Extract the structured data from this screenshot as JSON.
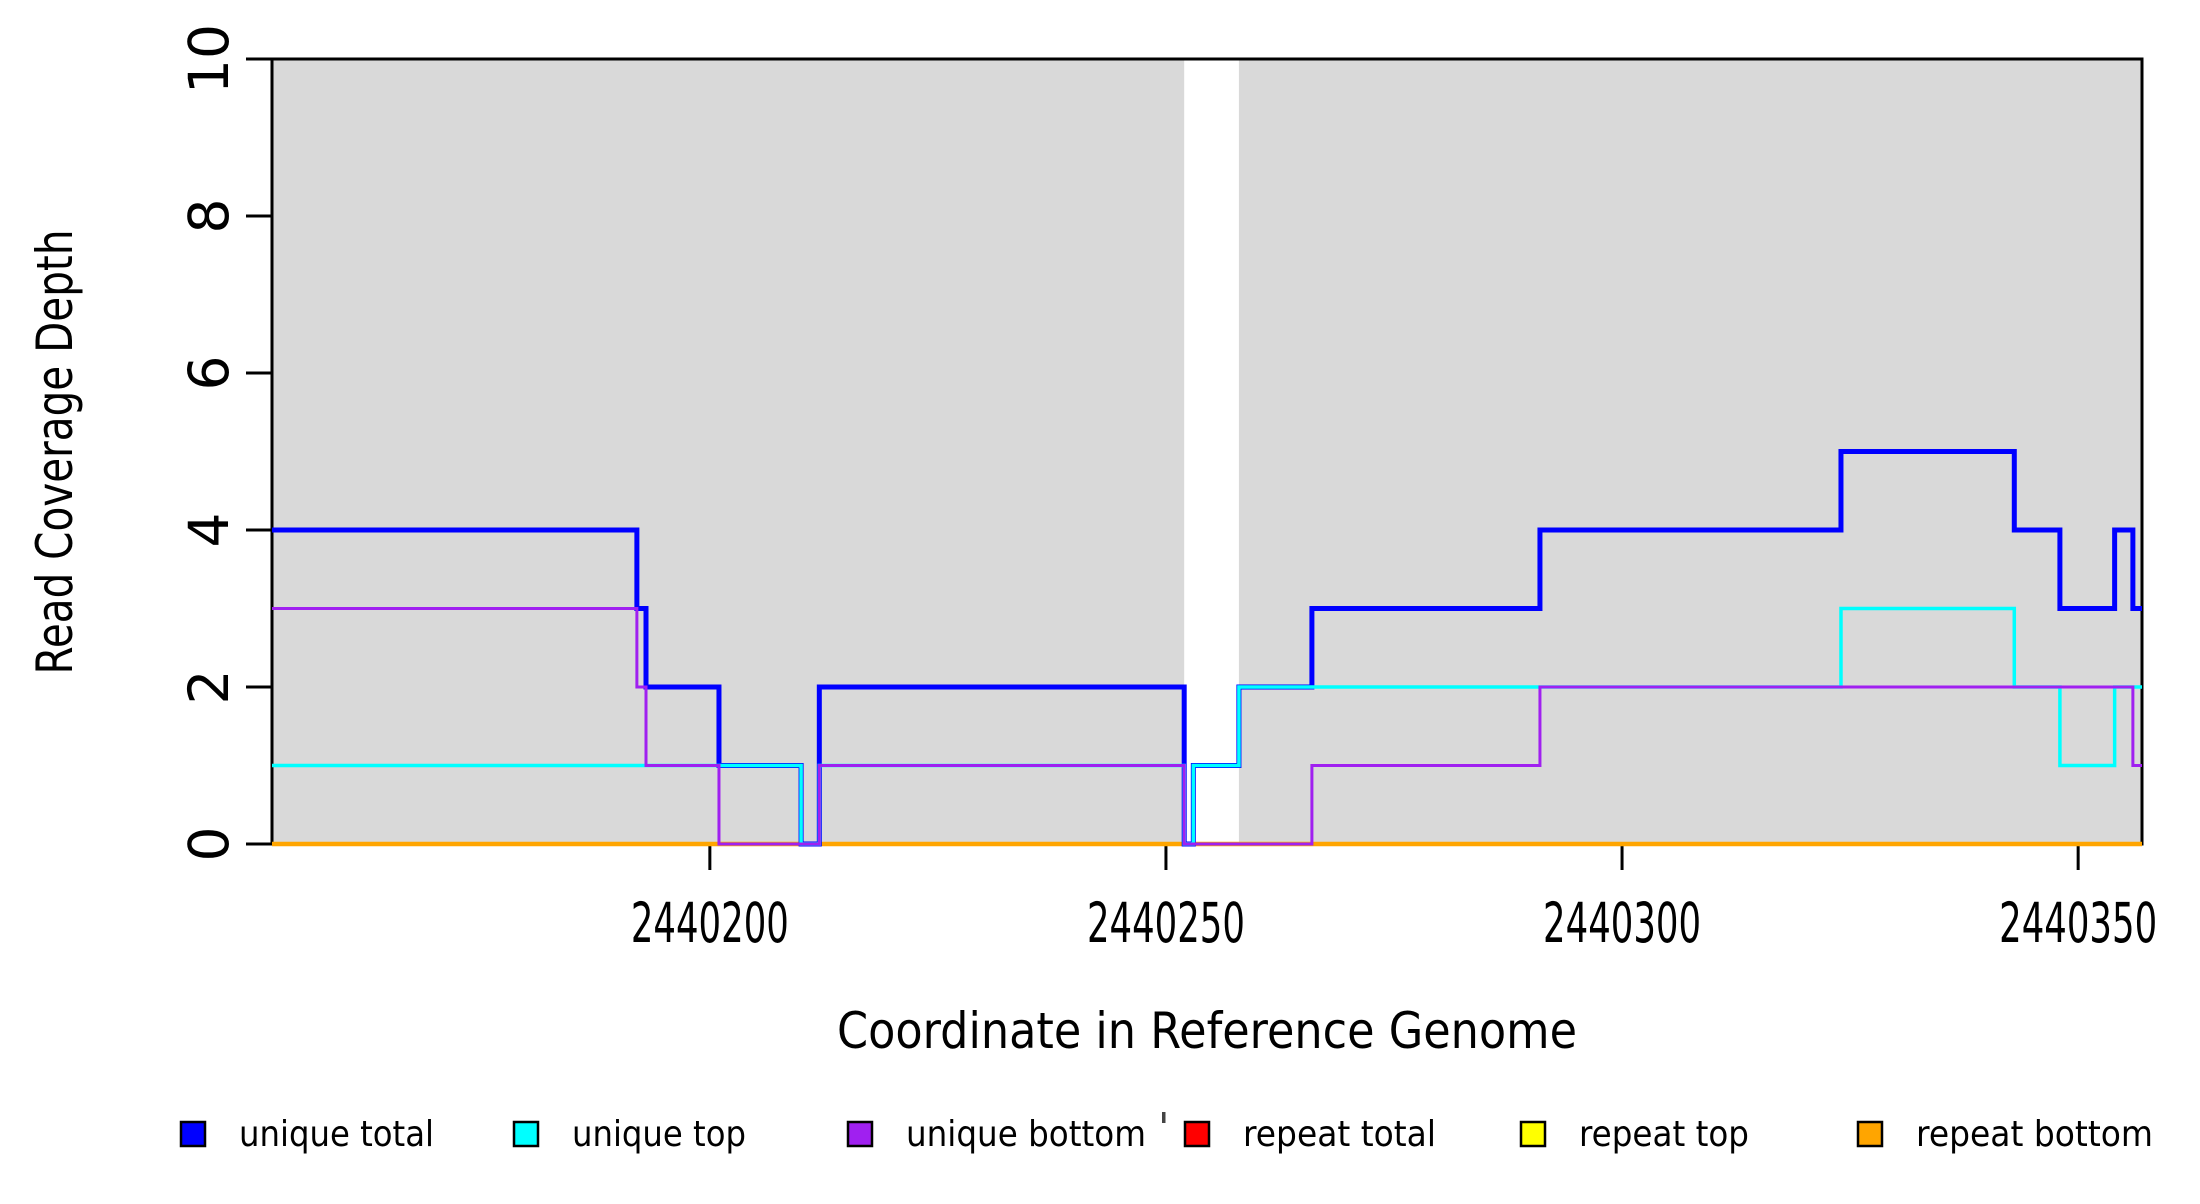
{
  "chart_data": {
    "type": "line",
    "subtype": "step",
    "title": "",
    "xlabel": "Coordinate in Reference Genome",
    "ylabel": "Read Coverage Depth",
    "xlim": [
      2440152,
      2440357
    ],
    "ylim": [
      0,
      10
    ],
    "x_ticks": [
      {
        "value": 2440200,
        "label": "2440200"
      },
      {
        "value": 2440250,
        "label": "2440250"
      },
      {
        "value": 2440300,
        "label": "2440300"
      },
      {
        "value": 2440350,
        "label": "2440350"
      }
    ],
    "y_ticks": [
      {
        "value": 0,
        "label": "0"
      },
      {
        "value": 2,
        "label": "2"
      },
      {
        "value": 4,
        "label": "4"
      },
      {
        "value": 6,
        "label": "6"
      },
      {
        "value": 8,
        "label": "8"
      },
      {
        "value": 10,
        "label": "10"
      }
    ],
    "grid": false,
    "plot_background": "#ffffff",
    "shaded_regions": [
      {
        "x0": 2440152,
        "x1": 2440252,
        "color": "#d9d9d9"
      },
      {
        "x0": 2440258,
        "x1": 2440357,
        "color": "#d9d9d9"
      }
    ],
    "series": [
      {
        "name": "repeat total",
        "color": "#ff0000",
        "line_width": 3,
        "steps": [
          [
            2440152,
            0
          ]
        ]
      },
      {
        "name": "repeat top",
        "color": "#ffff00",
        "line_width": 3,
        "steps": [
          [
            2440152,
            0
          ]
        ]
      },
      {
        "name": "repeat bottom",
        "color": "#ffa500",
        "line_width": 4.5,
        "steps": [
          [
            2440152,
            0
          ]
        ]
      },
      {
        "name": "unique total",
        "color": "#0000ff",
        "line_width": 5,
        "steps": [
          [
            2440152,
            4
          ],
          [
            2440192,
            3
          ],
          [
            2440193,
            2
          ],
          [
            2440201,
            1
          ],
          [
            2440210,
            0
          ],
          [
            2440212,
            2
          ],
          [
            2440252,
            0
          ],
          [
            2440253,
            1
          ],
          [
            2440258,
            2
          ],
          [
            2440266,
            3
          ],
          [
            2440291,
            4
          ],
          [
            2440324,
            5
          ],
          [
            2440343,
            4
          ],
          [
            2440348,
            3
          ],
          [
            2440354,
            4
          ],
          [
            2440356,
            3
          ]
        ]
      },
      {
        "name": "unique top",
        "color": "#00ffff",
        "line_width": 3.5,
        "steps": [
          [
            2440152,
            1
          ],
          [
            2440210,
            0
          ],
          [
            2440212,
            1
          ],
          [
            2440252,
            0
          ],
          [
            2440253,
            1
          ],
          [
            2440258,
            2
          ],
          [
            2440324,
            3
          ],
          [
            2440343,
            2
          ],
          [
            2440348,
            1
          ],
          [
            2440354,
            2
          ]
        ]
      },
      {
        "name": "unique bottom",
        "color": "#a020f0",
        "line_width": 3,
        "steps": [
          [
            2440152,
            3
          ],
          [
            2440192,
            2
          ],
          [
            2440193,
            1
          ],
          [
            2440201,
            0
          ],
          [
            2440212,
            1
          ],
          [
            2440252,
            0
          ],
          [
            2440266,
            1
          ],
          [
            2440291,
            2
          ],
          [
            2440356,
            1
          ]
        ]
      }
    ],
    "legend_position": "bottom"
  },
  "legend": {
    "items": [
      {
        "label": "unique total",
        "color": "#0000ff"
      },
      {
        "label": "unique top",
        "color": "#00ffff"
      },
      {
        "label": "unique bottom",
        "color": "#a020f0"
      },
      {
        "label": "repeat total",
        "color": "#ff0000"
      },
      {
        "label": "repeat top",
        "color": "#ffff00"
      },
      {
        "label": "repeat bottom",
        "color": "#ffa500"
      }
    ]
  },
  "colors": {
    "axis": "#000000",
    "shaded_region": "#d9d9d9",
    "background": "#ffffff"
  }
}
